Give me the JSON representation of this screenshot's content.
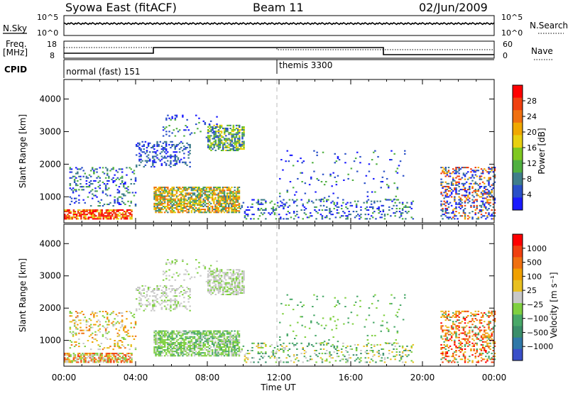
{
  "header": {
    "station": "Syowa East (fitACF)",
    "beam": "Beam 11",
    "date": "02/Jun/2009"
  },
  "panels": {
    "nsky": {
      "left_label": "N.Sky",
      "left_ticks": [
        "10^5",
        "10^0"
      ],
      "right_label": "N.Search",
      "right_ticks": [
        "10^5",
        "10^0"
      ]
    },
    "freq": {
      "left_label_1": "Freq.",
      "left_label_2": "[MHz]",
      "left_ticks": [
        "18",
        "8"
      ],
      "right_label": "Nave",
      "right_ticks": [
        "60",
        "0"
      ]
    },
    "cpid": {
      "label": "CPID",
      "program_1": "normal (fast) 151",
      "program_2": "themis 3300"
    }
  },
  "chart_data": [
    {
      "type": "heatmap",
      "name": "power",
      "ylabel": "Slant Range [km]",
      "xlabel": "Time UT",
      "yticks": [
        "1000",
        "2000",
        "3000",
        "4000"
      ],
      "ylim": [
        200,
        4600
      ],
      "xlim_hours": [
        0,
        24
      ],
      "colorbar": {
        "label": "Power [dB]",
        "ticks": [
          "4",
          "8",
          "12",
          "16",
          "20",
          "24",
          "28"
        ],
        "colors": [
          "#1a1aff",
          "#2a50c8",
          "#3f7e8a",
          "#50b040",
          "#7fc820",
          "#e8d010",
          "#f0a800",
          "#f07010",
          "#f04010",
          "#ff0000"
        ]
      }
    },
    {
      "type": "heatmap",
      "name": "velocity",
      "ylabel": "Slant Range [km]",
      "xlabel": "Time UT",
      "yticks": [
        "1000",
        "2000",
        "3000",
        "4000"
      ],
      "ylim": [
        200,
        4600
      ],
      "xlim_hours": [
        0,
        24
      ],
      "colorbar": {
        "label": "Velocity [m s⁻¹]",
        "ticks": [
          "1000",
          "500",
          "100",
          "25",
          "−25",
          "−100",
          "−500",
          "−1000"
        ],
        "colors": [
          "#3a4fc8",
          "#2f78a8",
          "#3a8e6a",
          "#48a868",
          "#7fd040",
          "#c8c8c8",
          "#e8c020",
          "#f0a000",
          "#f07010",
          "#f04010",
          "#ff0000"
        ]
      }
    }
  ],
  "x_axis": {
    "ticks": [
      "00:00",
      "04:00",
      "08:00",
      "12:00",
      "16:00",
      "20:00",
      "00:00"
    ],
    "label": "Time UT"
  }
}
